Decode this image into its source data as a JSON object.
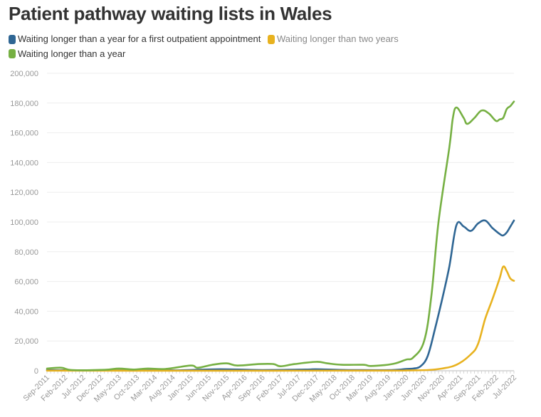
{
  "chart_data": {
    "type": "line",
    "title": "Patient pathway waiting lists in Wales",
    "xlabel": "",
    "ylabel": "",
    "ylim": [
      0,
      200000
    ],
    "yticks": [
      0,
      20000,
      40000,
      60000,
      80000,
      100000,
      120000,
      140000,
      160000,
      180000,
      200000
    ],
    "ytick_labels": [
      "0",
      "20,000",
      "40,000",
      "60,000",
      "80,000",
      "100,000",
      "120,000",
      "140,000",
      "160,000",
      "180,000",
      "200,000"
    ],
    "x_start": "Sep-2011",
    "x_end": "Jul-2022",
    "xtick_labels": [
      "Sep-2011",
      "Feb-2012",
      "Jul-2012",
      "Dec-2012",
      "May-2013",
      "Oct-2013",
      "Mar-2014",
      "Aug-2014",
      "Jan-2015",
      "Jun-2015",
      "Nov-2015",
      "Apr-2016",
      "Sep-2016",
      "Feb-2017",
      "Jul-2017",
      "Dec-2017",
      "May-2018",
      "Oct-2018",
      "Mar-2019",
      "Aug-2019",
      "Jan-2020",
      "Jun-2020",
      "Nov-2020",
      "Apr-2021",
      "Sep-2021",
      "Feb-2022",
      "Jul-2022"
    ],
    "legend_position": "top-left",
    "series": [
      {
        "name": "Waiting longer than a year for a first outpatient appointment",
        "color": "#2f6694",
        "points": [
          [
            "Sep-2011",
            500
          ],
          [
            "Sep-2012",
            200
          ],
          [
            "Sep-2013",
            300
          ],
          [
            "Sep-2014",
            300
          ],
          [
            "Sep-2015",
            1000
          ],
          [
            "Sep-2016",
            500
          ],
          [
            "Sep-2017",
            800
          ],
          [
            "Dec-2017",
            1000
          ],
          [
            "Sep-2018",
            500
          ],
          [
            "Sep-2019",
            500
          ],
          [
            "Jan-2020",
            1200
          ],
          [
            "Mar-2020",
            1500
          ],
          [
            "May-2020",
            3000
          ],
          [
            "Jul-2020",
            10000
          ],
          [
            "Sep-2020",
            28000
          ],
          [
            "Nov-2020",
            48000
          ],
          [
            "Jan-2021",
            70000
          ],
          [
            "Mar-2021",
            98000
          ],
          [
            "May-2021",
            97000
          ],
          [
            "Jul-2021",
            94000
          ],
          [
            "Sep-2021",
            99000
          ],
          [
            "Nov-2021",
            101000
          ],
          [
            "Jan-2022",
            96000
          ],
          [
            "Mar-2022",
            92000
          ],
          [
            "Apr-2022",
            91000
          ],
          [
            "May-2022",
            93000
          ],
          [
            "Jun-2022",
            97000
          ],
          [
            "Jul-2022",
            101000
          ]
        ]
      },
      {
        "name": "Waiting longer than two years",
        "color": "#e8b21f",
        "points": [
          [
            "Sep-2011",
            100
          ],
          [
            "Sep-2013",
            50
          ],
          [
            "Sep-2016",
            50
          ],
          [
            "Sep-2019",
            100
          ],
          [
            "Jan-2020",
            200
          ],
          [
            "Jul-2020",
            500
          ],
          [
            "Nov-2020",
            1500
          ],
          [
            "Mar-2021",
            4000
          ],
          [
            "Jul-2021",
            11000
          ],
          [
            "Sep-2021",
            18000
          ],
          [
            "Nov-2021",
            35000
          ],
          [
            "Jan-2022",
            48000
          ],
          [
            "Mar-2022",
            62000
          ],
          [
            "Apr-2022",
            70000
          ],
          [
            "May-2022",
            67000
          ],
          [
            "Jun-2022",
            62000
          ],
          [
            "Jul-2022",
            60500
          ]
        ]
      },
      {
        "name": "Waiting longer than a year",
        "color": "#76b043",
        "points": [
          [
            "Sep-2011",
            1500
          ],
          [
            "Jan-2012",
            2000
          ],
          [
            "Apr-2012",
            500
          ],
          [
            "Jan-2013",
            600
          ],
          [
            "May-2013",
            1500
          ],
          [
            "Sep-2013",
            800
          ],
          [
            "Jan-2014",
            1500
          ],
          [
            "Jun-2014",
            1200
          ],
          [
            "Jan-2015",
            3500
          ],
          [
            "Mar-2015",
            2000
          ],
          [
            "Jul-2015",
            4000
          ],
          [
            "Nov-2015",
            5000
          ],
          [
            "Feb-2016",
            3500
          ],
          [
            "Aug-2016",
            4500
          ],
          [
            "Dec-2016",
            4500
          ],
          [
            "Feb-2017",
            3000
          ],
          [
            "Jun-2017",
            4500
          ],
          [
            "Dec-2017",
            6000
          ],
          [
            "Mar-2018",
            5000
          ],
          [
            "Jul-2018",
            4000
          ],
          [
            "Jan-2019",
            4000
          ],
          [
            "Mar-2019",
            3200
          ],
          [
            "Jul-2019",
            3800
          ],
          [
            "Oct-2019",
            5000
          ],
          [
            "Jan-2020",
            7500
          ],
          [
            "Mar-2020",
            9000
          ],
          [
            "Jun-2020",
            20000
          ],
          [
            "Aug-2020",
            50000
          ],
          [
            "Oct-2020",
            100000
          ],
          [
            "Jan-2021",
            150000
          ],
          [
            "Feb-2021",
            170000
          ],
          [
            "Mar-2021",
            177000
          ],
          [
            "May-2021",
            170000
          ],
          [
            "Jun-2021",
            166000
          ],
          [
            "Aug-2021",
            170000
          ],
          [
            "Oct-2021",
            175000
          ],
          [
            "Dec-2021",
            173000
          ],
          [
            "Feb-2022",
            168000
          ],
          [
            "Mar-2022",
            169000
          ],
          [
            "Apr-2022",
            170000
          ],
          [
            "May-2022",
            176000
          ],
          [
            "Jun-2022",
            178000
          ],
          [
            "Jul-2022",
            181000
          ]
        ]
      }
    ]
  }
}
